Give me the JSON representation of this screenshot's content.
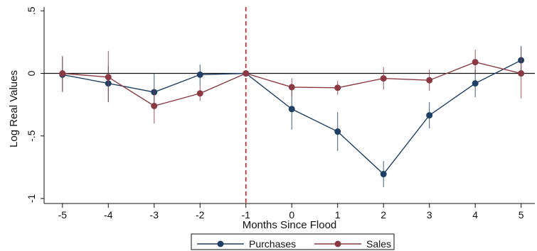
{
  "chart_data": {
    "type": "line",
    "xlabel": "Months Since Flood",
    "ylabel": "Log Real Values",
    "x": [
      -5,
      -4,
      -3,
      -2,
      -1,
      0,
      1,
      2,
      3,
      4,
      5
    ],
    "x_tick_labels": [
      "-5",
      "-4",
      "-3",
      "-2",
      "-1",
      "0",
      "1",
      "2",
      "3",
      "4",
      "5"
    ],
    "y_ticks": [
      0.5,
      0,
      -0.5,
      -1
    ],
    "y_tick_labels": [
      ".5",
      "0",
      "-.5",
      "-1"
    ],
    "xlim": [
      -5.4,
      5.3
    ],
    "ylim": [
      -1.04,
      0.53
    ],
    "reference_lines": {
      "horizontal_y": 0,
      "vertical_x": -1,
      "vertical_color": "#e41a1c"
    },
    "grid": false,
    "legend_position": "bottom",
    "series": [
      {
        "name": "Purchases",
        "color": "#1f3f66",
        "values": [
          -0.01,
          -0.08,
          -0.15,
          -0.01,
          0.0,
          -0.285,
          -0.465,
          -0.805,
          -0.335,
          -0.08,
          0.105
        ],
        "ci_low": [
          -0.15,
          -0.23,
          -0.29,
          -0.1,
          0.0,
          -0.45,
          -0.62,
          -0.91,
          -0.44,
          -0.19,
          -0.01
        ],
        "ci_high": [
          0.13,
          0.06,
          0.0,
          0.07,
          0.0,
          -0.12,
          -0.31,
          -0.7,
          -0.23,
          0.03,
          0.22
        ]
      },
      {
        "name": "Sales",
        "color": "#8b3a44",
        "values": [
          0.0,
          -0.03,
          -0.26,
          -0.16,
          0.0,
          -0.11,
          -0.115,
          -0.04,
          -0.055,
          0.09,
          0.0
        ],
        "ci_low": [
          -0.14,
          -0.23,
          -0.4,
          -0.22,
          0.0,
          -0.18,
          -0.17,
          -0.13,
          -0.14,
          -0.01,
          -0.2
        ],
        "ci_high": [
          0.14,
          0.18,
          -0.12,
          -0.1,
          0.0,
          -0.04,
          -0.06,
          0.05,
          0.03,
          0.19,
          0.2
        ]
      }
    ]
  }
}
